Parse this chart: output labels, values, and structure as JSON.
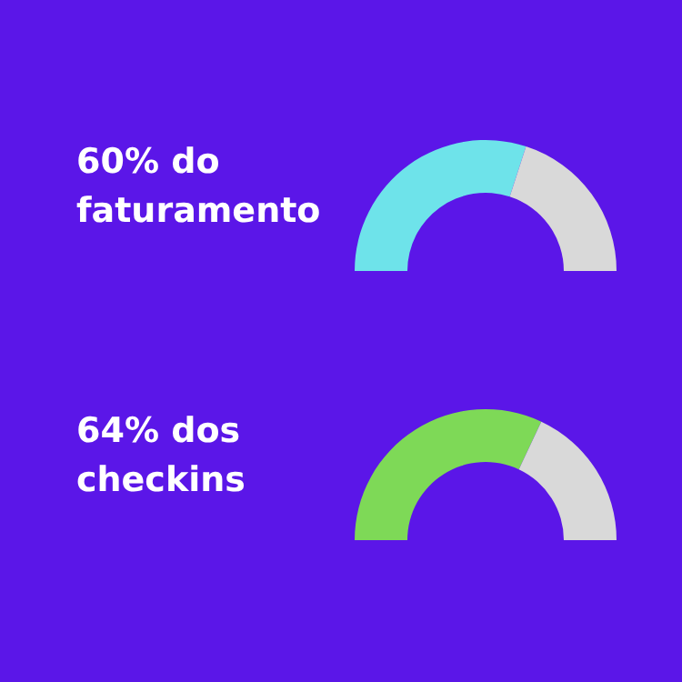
{
  "chart_data": [
    {
      "type": "donut",
      "title": "60% do faturamento",
      "categories": [
        null,
        null
      ],
      "values": [
        60,
        40
      ],
      "colors": [
        "#6ee3ea",
        "#d9d9d9"
      ]
    },
    {
      "type": "donut",
      "title": "64% dos checkins",
      "categories": [
        null,
        null
      ],
      "values": [
        64,
        36
      ],
      "colors": [
        "#7ed957",
        "#d9d9d9"
      ]
    }
  ]
}
